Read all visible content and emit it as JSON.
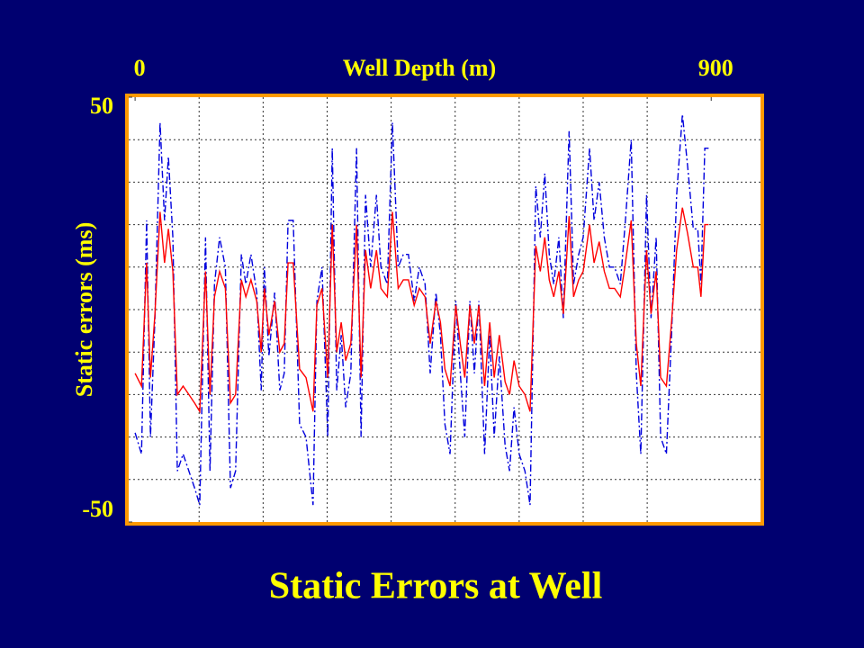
{
  "chart_data": {
    "type": "line",
    "title": "Static Errors at Well",
    "xlabel": "Well Depth (m)",
    "ylabel": "Static errors (ms)",
    "xlim": [
      -10,
      977
    ],
    "xticks": [
      0,
      900
    ],
    "xminor": [
      100,
      200,
      300,
      400,
      500,
      600,
      700,
      800
    ],
    "ylim": [
      -50,
      50
    ],
    "yticks": [
      -50,
      50
    ],
    "yminor": [
      -40,
      -30,
      -20,
      -10,
      0,
      10,
      20,
      30,
      40
    ],
    "grid": true,
    "x": [
      0,
      10,
      18,
      24,
      31,
      39,
      46,
      52,
      59,
      66,
      75,
      84,
      93,
      101,
      110,
      117,
      124,
      132,
      141,
      149,
      157,
      166,
      173,
      181,
      190,
      197,
      202,
      209,
      218,
      226,
      233,
      239,
      247,
      257,
      267,
      278,
      284,
      292,
      301,
      308,
      315,
      322,
      329,
      337,
      346,
      353,
      360,
      368,
      377,
      384,
      394,
      402,
      411,
      419,
      427,
      436,
      444,
      453,
      461,
      470,
      477,
      484,
      492,
      501,
      508,
      515,
      523,
      530,
      537,
      546,
      554,
      561,
      569,
      578,
      585,
      592,
      600,
      609,
      617,
      626,
      633,
      640,
      647,
      654,
      662,
      669,
      678,
      685,
      693,
      700,
      710,
      717,
      725,
      733,
      741,
      749,
      758,
      766,
      775,
      783,
      790,
      799,
      806,
      814,
      821,
      830,
      838,
      846,
      855,
      863,
      872,
      879,
      884,
      890,
      896
    ],
    "series": [
      {
        "color": "#0000dd",
        "style": "dashdot",
        "values": [
          -29,
          -34,
          21,
          -30,
          -2,
          44,
          21,
          36,
          17,
          -38,
          -34,
          -38,
          -42,
          -46,
          17,
          -38,
          6,
          17,
          10,
          -42,
          -38,
          13,
          6,
          13,
          4,
          -19,
          10,
          -11,
          4,
          -19,
          -15,
          21,
          21,
          -27,
          -30,
          -46,
          2,
          10,
          -30,
          38,
          -19,
          -6,
          -23,
          -15,
          38,
          -30,
          27,
          10,
          27,
          10,
          6,
          44,
          10,
          13,
          13,
          2,
          10,
          6,
          -15,
          4,
          -6,
          -27,
          -34,
          2,
          -15,
          -30,
          2,
          -15,
          2,
          -34,
          -6,
          -30,
          -11,
          -32,
          -38,
          -23,
          -34,
          -38,
          -46,
          29,
          17,
          32,
          13,
          6,
          17,
          -2,
          42,
          6,
          13,
          17,
          38,
          21,
          30,
          17,
          10,
          10,
          6,
          21,
          40,
          -15,
          -34,
          27,
          -2,
          17,
          -30,
          -34,
          -6,
          27,
          46,
          34,
          19,
          19,
          6,
          38,
          38
        ]
      },
      {
        "color": "#ff0000",
        "style": "solid",
        "values": [
          -15,
          -18,
          11,
          -16,
          -1,
          23,
          11,
          19,
          9,
          -20,
          -18,
          -20,
          -22,
          -24,
          9,
          -20,
          3,
          9,
          5,
          -22,
          -20,
          7,
          3,
          7,
          2,
          -10,
          5,
          -6,
          2,
          -10,
          -8,
          11,
          11,
          -14,
          -16,
          -24,
          1,
          5,
          -16,
          20,
          -10,
          -3,
          -12,
          -8,
          20,
          -16,
          14,
          5,
          14,
          5,
          3,
          23,
          5,
          7,
          7,
          1,
          5,
          3,
          -8,
          2,
          -3,
          -14,
          -18,
          1,
          -8,
          -16,
          1,
          -8,
          1,
          -18,
          -3,
          -16,
          -6,
          -17,
          -20,
          -12,
          -18,
          -20,
          -24,
          15,
          9,
          17,
          7,
          3,
          9,
          -1,
          22,
          3,
          7,
          9,
          20,
          11,
          16,
          9,
          5,
          5,
          3,
          11,
          21,
          -8,
          -18,
          14,
          -1,
          9,
          -16,
          -18,
          -3,
          14,
          24,
          18,
          10,
          10,
          3,
          20,
          20
        ]
      }
    ]
  }
}
